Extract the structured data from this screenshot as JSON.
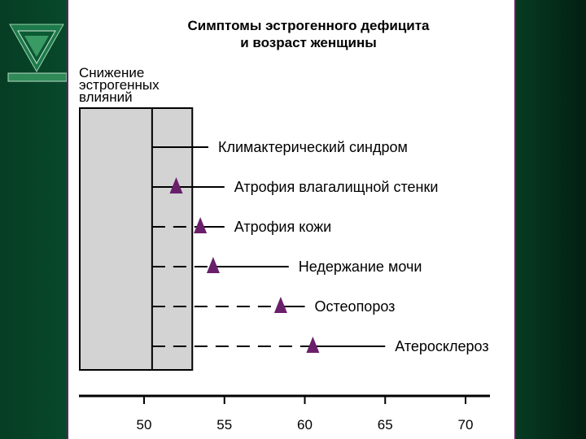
{
  "title_line1": "Симптомы эстрогенного дефицита",
  "title_line2": "и возраст женщины",
  "ylabel_lines": [
    "Снижение",
    "эстрогенных",
    "влияний"
  ],
  "colors": {
    "marker": "#6a1f6a",
    "bar_fill": "#d3d3d3",
    "border": "#6a1f6a"
  },
  "chart_data": {
    "type": "timeline",
    "xlim": [
      45,
      71
    ],
    "x_ticks": [
      50,
      55,
      60,
      65,
      70
    ],
    "bar": {
      "start": 46,
      "end": 53,
      "divider": 50.5
    },
    "symptoms": [
      {
        "label": "Климактерический синдром",
        "marker": null,
        "line_end": 54
      },
      {
        "label": "Атрофия влагалищной стенки",
        "marker": 52,
        "line_end": 55
      },
      {
        "label": "Атрофия кожи",
        "marker": 53.5,
        "line_end": 55
      },
      {
        "label": "Недержание мочи",
        "marker": 54.3,
        "line_end": 59
      },
      {
        "label": "Остеопороз",
        "marker": 58.5,
        "line_end": 60
      },
      {
        "label": "Атеросклероз",
        "marker": 60.5,
        "line_end": 65
      }
    ]
  }
}
